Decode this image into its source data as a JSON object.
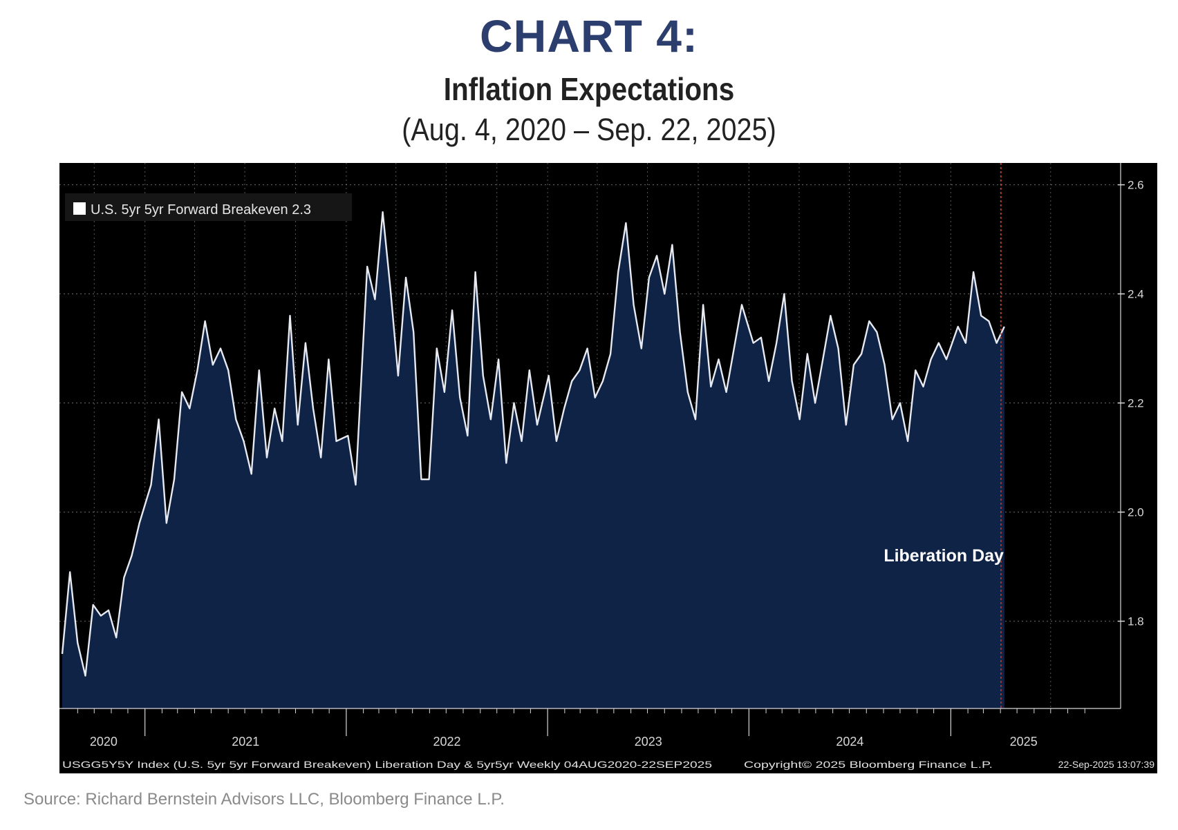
{
  "header": {
    "chart_label": "CHART 4:",
    "title": "Inflation Expectations",
    "subtitle": "(Aug. 4, 2020 – Sep. 22, 2025)"
  },
  "legend": {
    "text": "U.S. 5yr 5yr Forward Breakeven 2.3",
    "swatch_color": "#ffffff"
  },
  "annotation": {
    "text": "Liberation Day",
    "date": "2025-04-02",
    "line_color": "#c0392b"
  },
  "footer": {
    "left": "USGG5Y5Y Index (U.S. 5yr 5yr Forward Breakeven) Liberation Day & 5yr5yr  Weekly 04AUG2020-22SEP2025",
    "copyright": "Copyright© 2025 Bloomberg Finance L.P.",
    "timestamp": "22-Sep-2025 13:07:39"
  },
  "source": "Source: Richard Bernstein Advisors LLC, Bloomberg Finance L.P.",
  "colors": {
    "background": "#000000",
    "area_fill": "#0f2346",
    "line": "#e8eaf2",
    "grid": "#9aa0ad",
    "axis_text": "#d8d8d8",
    "title_blue": "#2c3e6e"
  },
  "chart_data": {
    "type": "area",
    "title": "Inflation Expectations",
    "subtitle": "(Aug. 4, 2020 – Sep. 22, 2025)",
    "xlabel": "",
    "ylabel": "",
    "x_range": [
      "2020-08-04",
      "2025-09-22"
    ],
    "ylim": [
      1.64,
      2.64
    ],
    "y_ticks": [
      1.8,
      2.0,
      2.2,
      2.4,
      2.6
    ],
    "y_tick_labels": [
      "1.8",
      "2.0",
      "2.2",
      "2.4",
      "2.6"
    ],
    "x_year_labels": [
      "2020",
      "2021",
      "2022",
      "2023",
      "2024",
      "2025"
    ],
    "grid": true,
    "legend_position": "top-left",
    "y_axis_side": "right",
    "series": [
      {
        "name": "U.S. 5yr 5yr Forward Breakeven",
        "last_value": 2.3,
        "points": [
          [
            "2020-08-04",
            1.74
          ],
          [
            "2020-08-18",
            1.89
          ],
          [
            "2020-09-01",
            1.76
          ],
          [
            "2020-09-15",
            1.7
          ],
          [
            "2020-09-29",
            1.83
          ],
          [
            "2020-10-13",
            1.81
          ],
          [
            "2020-10-27",
            1.82
          ],
          [
            "2020-11-10",
            1.77
          ],
          [
            "2020-11-24",
            1.88
          ],
          [
            "2020-12-08",
            1.92
          ],
          [
            "2020-12-22",
            1.98
          ],
          [
            "2021-01-12",
            2.05
          ],
          [
            "2021-01-26",
            2.17
          ],
          [
            "2021-02-09",
            1.98
          ],
          [
            "2021-02-23",
            2.06
          ],
          [
            "2021-03-09",
            2.22
          ],
          [
            "2021-03-23",
            2.19
          ],
          [
            "2021-04-06",
            2.26
          ],
          [
            "2021-04-20",
            2.35
          ],
          [
            "2021-05-04",
            2.27
          ],
          [
            "2021-05-18",
            2.3
          ],
          [
            "2021-06-01",
            2.26
          ],
          [
            "2021-06-15",
            2.17
          ],
          [
            "2021-06-29",
            2.13
          ],
          [
            "2021-07-13",
            2.07
          ],
          [
            "2021-07-27",
            2.26
          ],
          [
            "2021-08-10",
            2.1
          ],
          [
            "2021-08-24",
            2.19
          ],
          [
            "2021-09-07",
            2.13
          ],
          [
            "2021-09-21",
            2.36
          ],
          [
            "2021-10-05",
            2.16
          ],
          [
            "2021-10-19",
            2.31
          ],
          [
            "2021-11-02",
            2.19
          ],
          [
            "2021-11-16",
            2.1
          ],
          [
            "2021-11-30",
            2.28
          ],
          [
            "2021-12-14",
            2.13
          ],
          [
            "2022-01-04",
            2.14
          ],
          [
            "2022-01-18",
            2.05
          ],
          [
            "2022-02-08",
            2.45
          ],
          [
            "2022-02-22",
            2.39
          ],
          [
            "2022-03-08",
            2.55
          ],
          [
            "2022-03-22",
            2.41
          ],
          [
            "2022-04-05",
            2.25
          ],
          [
            "2022-04-19",
            2.43
          ],
          [
            "2022-05-03",
            2.33
          ],
          [
            "2022-05-17",
            2.06
          ],
          [
            "2022-05-31",
            2.06
          ],
          [
            "2022-06-14",
            2.3
          ],
          [
            "2022-06-28",
            2.22
          ],
          [
            "2022-07-12",
            2.37
          ],
          [
            "2022-07-26",
            2.21
          ],
          [
            "2022-08-09",
            2.14
          ],
          [
            "2022-08-23",
            2.44
          ],
          [
            "2022-09-06",
            2.25
          ],
          [
            "2022-09-20",
            2.17
          ],
          [
            "2022-10-04",
            2.28
          ],
          [
            "2022-10-18",
            2.09
          ],
          [
            "2022-11-01",
            2.2
          ],
          [
            "2022-11-15",
            2.13
          ],
          [
            "2022-11-29",
            2.26
          ],
          [
            "2022-12-13",
            2.16
          ],
          [
            "2023-01-03",
            2.25
          ],
          [
            "2023-01-17",
            2.13
          ],
          [
            "2023-01-31",
            2.19
          ],
          [
            "2023-02-14",
            2.24
          ],
          [
            "2023-02-28",
            2.26
          ],
          [
            "2023-03-14",
            2.3
          ],
          [
            "2023-03-28",
            2.21
          ],
          [
            "2023-04-11",
            2.24
          ],
          [
            "2023-04-25",
            2.29
          ],
          [
            "2023-05-09",
            2.44
          ],
          [
            "2023-05-23",
            2.53
          ],
          [
            "2023-06-06",
            2.38
          ],
          [
            "2023-06-20",
            2.3
          ],
          [
            "2023-07-04",
            2.43
          ],
          [
            "2023-07-18",
            2.47
          ],
          [
            "2023-08-01",
            2.4
          ],
          [
            "2023-08-15",
            2.49
          ],
          [
            "2023-08-29",
            2.33
          ],
          [
            "2023-09-12",
            2.22
          ],
          [
            "2023-09-26",
            2.17
          ],
          [
            "2023-10-10",
            2.38
          ],
          [
            "2023-10-24",
            2.23
          ],
          [
            "2023-11-07",
            2.28
          ],
          [
            "2023-11-21",
            2.22
          ],
          [
            "2023-12-05",
            2.3
          ],
          [
            "2023-12-19",
            2.38
          ],
          [
            "2024-01-09",
            2.31
          ],
          [
            "2024-01-23",
            2.32
          ],
          [
            "2024-02-06",
            2.24
          ],
          [
            "2024-02-20",
            2.31
          ],
          [
            "2024-03-05",
            2.4
          ],
          [
            "2024-03-19",
            2.24
          ],
          [
            "2024-04-02",
            2.17
          ],
          [
            "2024-04-16",
            2.29
          ],
          [
            "2024-04-30",
            2.2
          ],
          [
            "2024-05-14",
            2.28
          ],
          [
            "2024-05-28",
            2.36
          ],
          [
            "2024-06-11",
            2.3
          ],
          [
            "2024-06-25",
            2.16
          ],
          [
            "2024-07-09",
            2.27
          ],
          [
            "2024-07-23",
            2.29
          ],
          [
            "2024-08-06",
            2.35
          ],
          [
            "2024-08-20",
            2.33
          ],
          [
            "2024-09-03",
            2.27
          ],
          [
            "2024-09-17",
            2.17
          ],
          [
            "2024-10-01",
            2.2
          ],
          [
            "2024-10-15",
            2.13
          ],
          [
            "2024-10-29",
            2.26
          ],
          [
            "2024-11-12",
            2.23
          ],
          [
            "2024-11-26",
            2.28
          ],
          [
            "2024-12-10",
            2.31
          ],
          [
            "2024-12-24",
            2.28
          ],
          [
            "2025-01-14",
            2.34
          ],
          [
            "2025-01-28",
            2.31
          ],
          [
            "2025-02-11",
            2.44
          ],
          [
            "2025-02-25",
            2.36
          ],
          [
            "2025-03-11",
            2.35
          ],
          [
            "2025-03-25",
            2.31
          ],
          [
            "2025-04-08",
            2.34
          ]
        ]
      }
    ]
  }
}
